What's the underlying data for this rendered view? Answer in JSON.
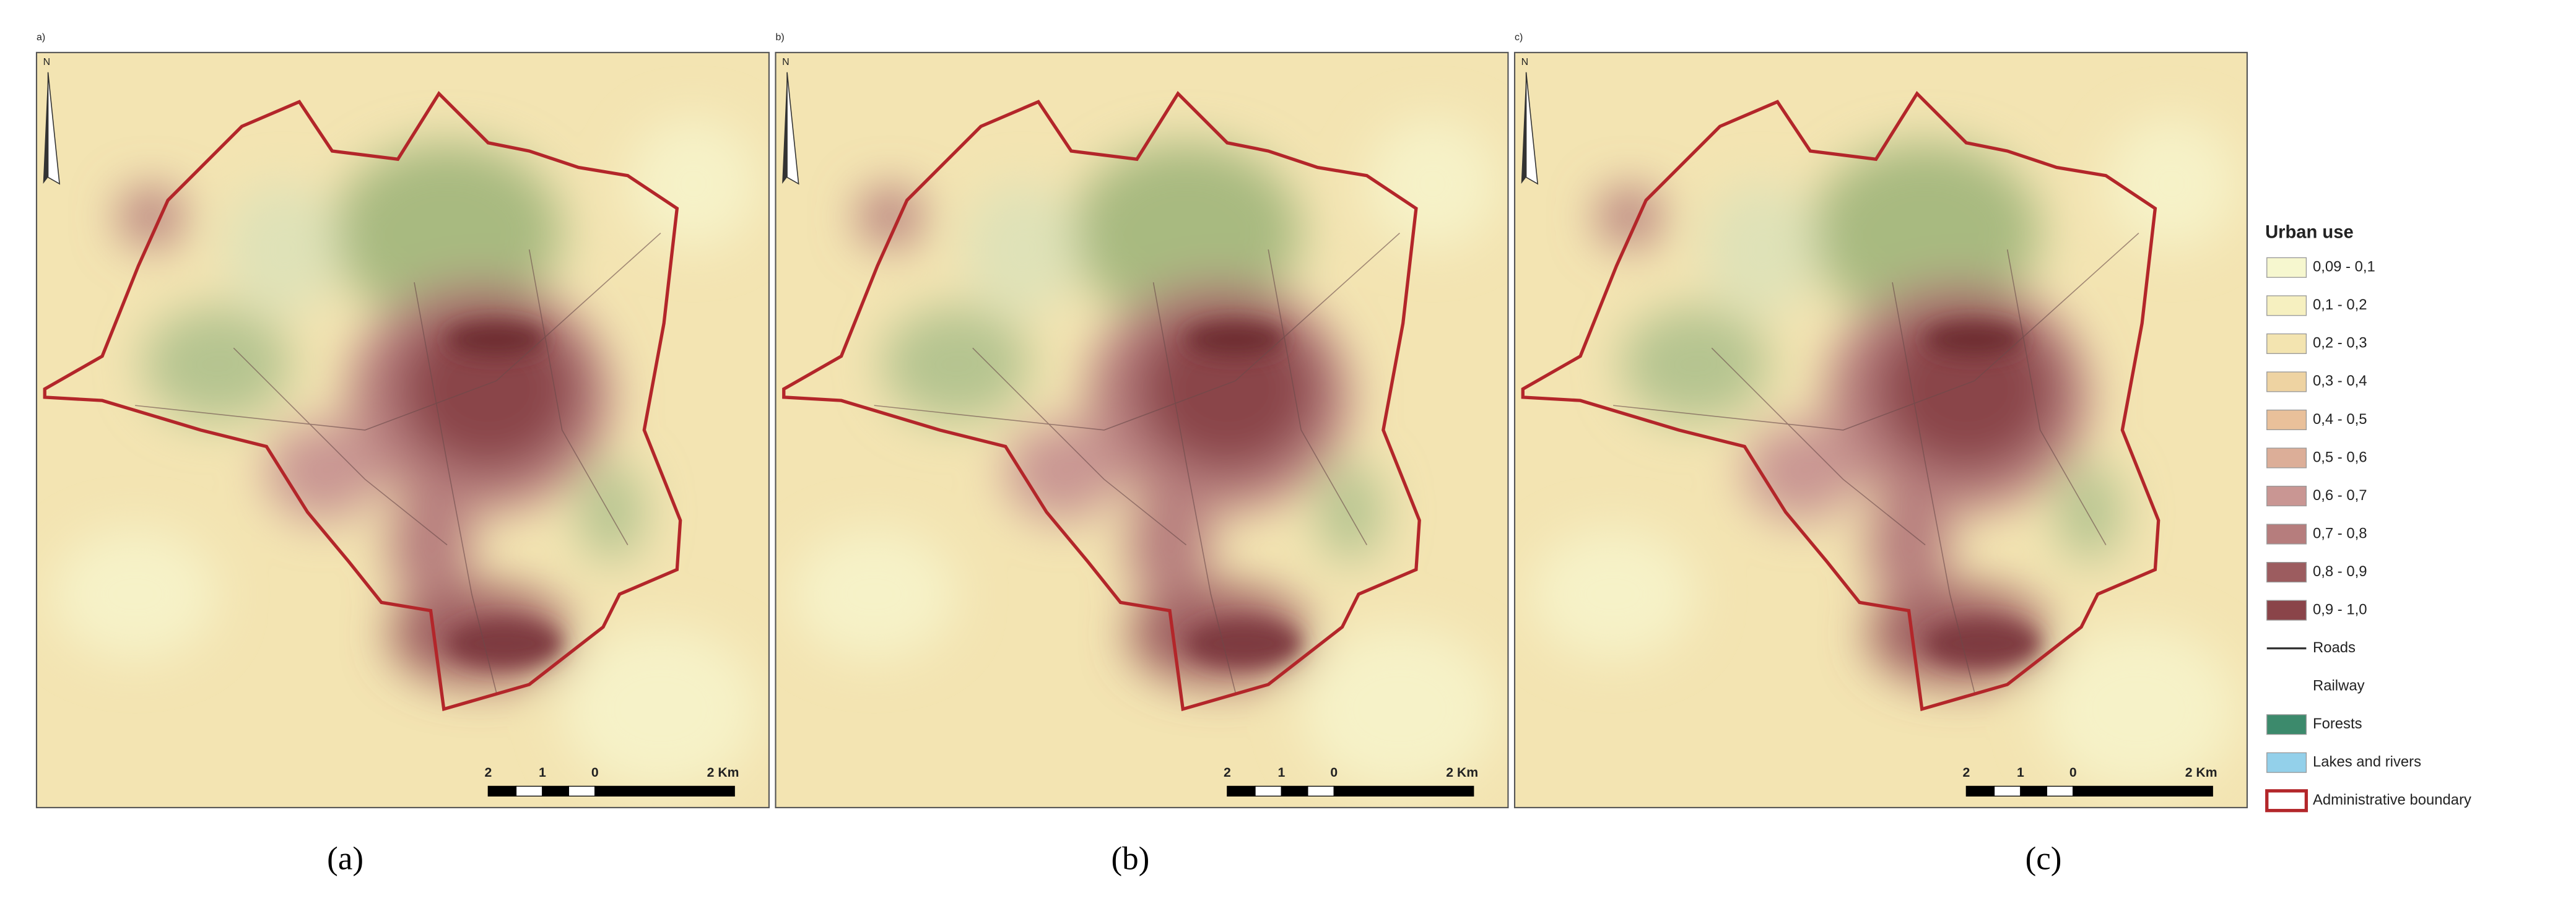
{
  "panels": [
    {
      "tag": "a)",
      "caption": "(a)"
    },
    {
      "tag": "b)",
      "caption": "(b)"
    },
    {
      "tag": "c)",
      "caption": "(c)"
    }
  ],
  "north": "N",
  "scale_bar": {
    "labels": [
      "2",
      "1",
      "0",
      "2 Km"
    ]
  },
  "legend": {
    "title": "Urban use",
    "items": [
      {
        "label": "0,09 - 0,1",
        "kind": "fill",
        "color": "#f6f7cf"
      },
      {
        "label": "0,1 - 0,2",
        "kind": "fill",
        "color": "#f6f0c0"
      },
      {
        "label": "0,2 - 0,3",
        "kind": "fill",
        "color": "#f3e4b0"
      },
      {
        "label": "0,3 - 0,4",
        "kind": "fill",
        "color": "#eed3a2"
      },
      {
        "label": "0,4 - 0,5",
        "kind": "fill",
        "color": "#e9c09a"
      },
      {
        "label": "0,5 - 0,6",
        "kind": "fill",
        "color": "#dcae98"
      },
      {
        "label": "0,6 - 0,7",
        "kind": "fill",
        "color": "#c99693"
      },
      {
        "label": "0,7 - 0,8",
        "kind": "fill",
        "color": "#b67d7d"
      },
      {
        "label": "0,8 - 0,9",
        "kind": "fill",
        "color": "#9c5c5f"
      },
      {
        "label": "0,9 - 1,0",
        "kind": "fill",
        "color": "#8a4449"
      },
      {
        "label": "Roads",
        "kind": "line",
        "color": "#333333"
      },
      {
        "label": "Railway",
        "kind": "none",
        "color": "#ffffff"
      },
      {
        "label": "Forests",
        "kind": "fill",
        "color": "#3c8a6c"
      },
      {
        "label": "Lakes and rivers",
        "kind": "fill",
        "color": "#93d0ea"
      },
      {
        "label": "Administrative boundary",
        "kind": "outline",
        "color": "#b3262a"
      }
    ]
  }
}
